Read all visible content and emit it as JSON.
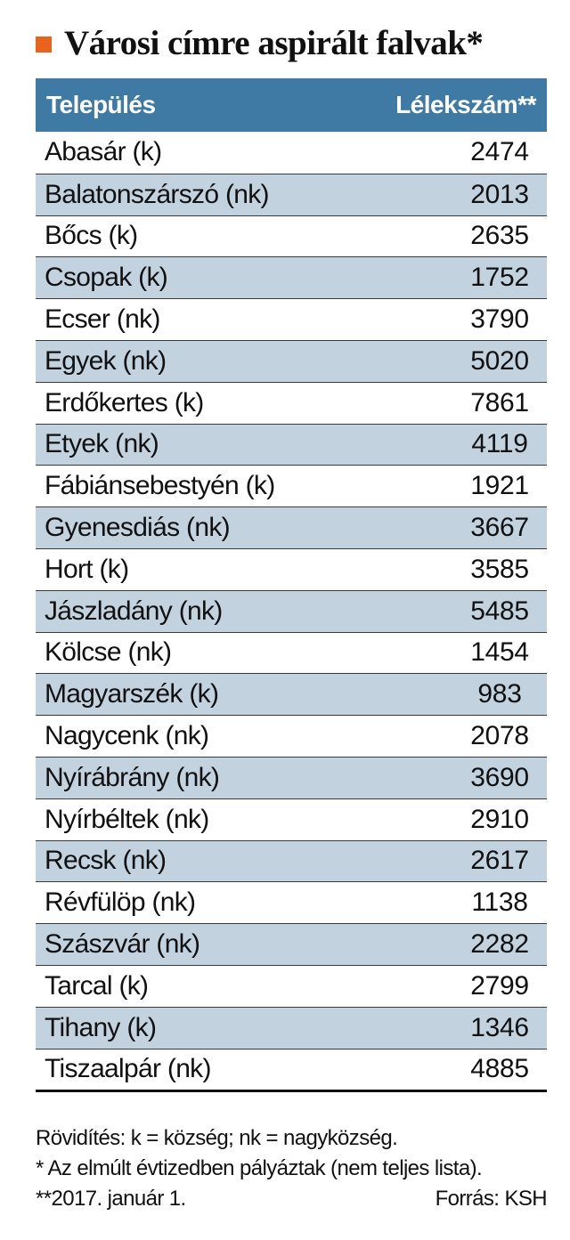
{
  "title": "Városi címre aspirált falvak*",
  "colors": {
    "accent": "#e8641e",
    "header_bg": "#3f7aa5",
    "row_alt": "#c3d2df"
  },
  "table": {
    "headers": {
      "name": "Település",
      "population": "Lélekszám**"
    },
    "rows": [
      {
        "name": "Abasár (k)",
        "population": "2474"
      },
      {
        "name": "Balatonszárszó (nk)",
        "population": "2013"
      },
      {
        "name": "Bőcs (k)",
        "population": "2635"
      },
      {
        "name": "Csopak (k)",
        "population": "1752"
      },
      {
        "name": "Ecser (nk)",
        "population": "3790"
      },
      {
        "name": "Egyek (nk)",
        "population": "5020"
      },
      {
        "name": "Erdőkertes (k)",
        "population": "7861"
      },
      {
        "name": "Etyek (nk)",
        "population": "4119"
      },
      {
        "name": "Fábiánsebestyén (k)",
        "population": "1921"
      },
      {
        "name": "Gyenesdiás (nk)",
        "population": "3667"
      },
      {
        "name": "Hort (k)",
        "population": "3585"
      },
      {
        "name": "Jászladány (nk)",
        "population": "5485"
      },
      {
        "name": "Kölcse (nk)",
        "population": "1454"
      },
      {
        "name": "Magyarszék (k)",
        "population": "983"
      },
      {
        "name": "Nagycenk (nk)",
        "population": "2078"
      },
      {
        "name": "Nyírábrány (nk)",
        "population": "3690"
      },
      {
        "name": "Nyírbéltek (nk)",
        "population": "2910"
      },
      {
        "name": "Recsk (nk)",
        "population": "2617"
      },
      {
        "name": "Révfülöp (nk)",
        "population": "1138"
      },
      {
        "name": "Szászvár (nk)",
        "population": "2282"
      },
      {
        "name": "Tarcal (k)",
        "population": "2799"
      },
      {
        "name": "Tihany (k)",
        "population": "1346"
      },
      {
        "name": "Tiszaalpár (nk)",
        "population": "4885"
      }
    ]
  },
  "footnotes": {
    "abbreviations": "Rövidítés: k = község; nk = nagyközség.",
    "note1": "* Az elmúlt évtizedben pályáztak (nem teljes lista).",
    "note2": "**2017. január 1.",
    "source": "Forrás: KSH"
  }
}
